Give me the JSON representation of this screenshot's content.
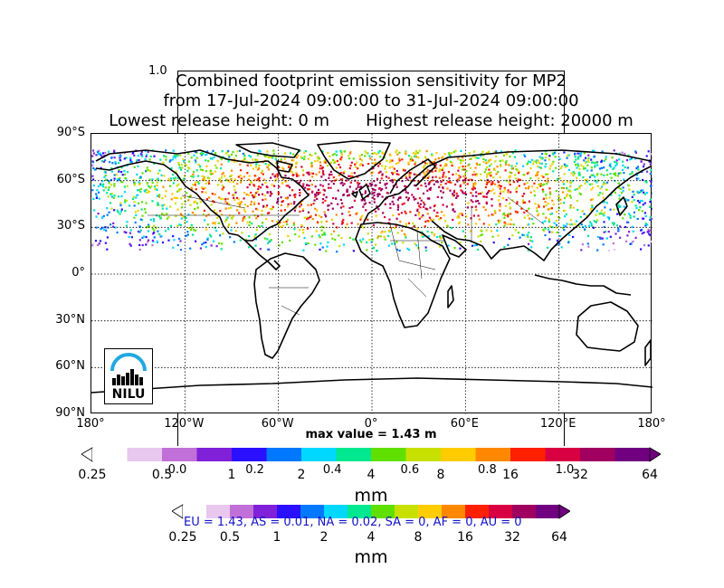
{
  "title_lines": [
    "Combined footprint emission sensitivity for MP2",
    "from 17-Jul-2024 09:00:00 to 31-Jul-2024 09:00:00",
    "Lowest release height: 0 m       Highest release height: 20000 m"
  ],
  "ghost_tick_top": "1.0",
  "max_value_text": "max value = 1.43 m",
  "logo": {
    "text": "NILU"
  },
  "lat_labels": [
    "90°N",
    "60°N",
    "30°N",
    "0°",
    "30°S",
    "60°S",
    "90°S"
  ],
  "lon_labels": [
    "180°",
    "120°W",
    "60°W",
    "0°",
    "60°E",
    "120°E",
    "180°"
  ],
  "colorbar_main": {
    "ticks": [
      "0.25",
      "0.5",
      "1",
      "2",
      "4",
      "8",
      "16",
      "32",
      "64"
    ],
    "unit": "mm",
    "colors": [
      "#ffffff",
      "#e8c8ee",
      "#c070d8",
      "#8020d8",
      "#2a10ff",
      "#0078ff",
      "#00d8ff",
      "#00e890",
      "#60e000",
      "#c8e000",
      "#ffcc00",
      "#ff8800",
      "#ff2000",
      "#d80040",
      "#a00060",
      "#700080"
    ]
  },
  "colorbar_overlay_ticks": [
    "0.0",
    "0.2",
    "0.4",
    "0.6",
    "0.8",
    "1.0"
  ],
  "colorbar_second": {
    "ticks": [
      "0.25",
      "0.5",
      "1",
      "2",
      "4",
      "8",
      "16",
      "32",
      "64"
    ],
    "unit": "mm"
  },
  "legend_text": "EU = 1.43,  AS = 0.01,  NA = 0.02,  SA = 0,  AF = 0,  AU = 0",
  "chart_data": {
    "type": "heatmap",
    "title": "Combined footprint emission sensitivity for MP2",
    "subtitle": "from 17-Jul-2024 09:00:00 to 31-Jul-2024 09:00:00",
    "x_range": [
      -180,
      180
    ],
    "y_range": [
      -90,
      90
    ],
    "x_ticks": [
      -180,
      -120,
      -60,
      0,
      60,
      120,
      180
    ],
    "y_ticks": [
      -90,
      -60,
      -30,
      0,
      30,
      60,
      90
    ],
    "grid": true,
    "colorbar_levels": [
      0.25,
      0.5,
      1,
      2,
      4,
      8,
      16,
      32,
      64
    ],
    "colorbar_unit": "mm",
    "max_value": 1.43,
    "regional_values": {
      "EU": 1.43,
      "AS": 0.01,
      "NA": 0.02,
      "SA": 0,
      "AF": 0,
      "AU": 0
    }
  }
}
